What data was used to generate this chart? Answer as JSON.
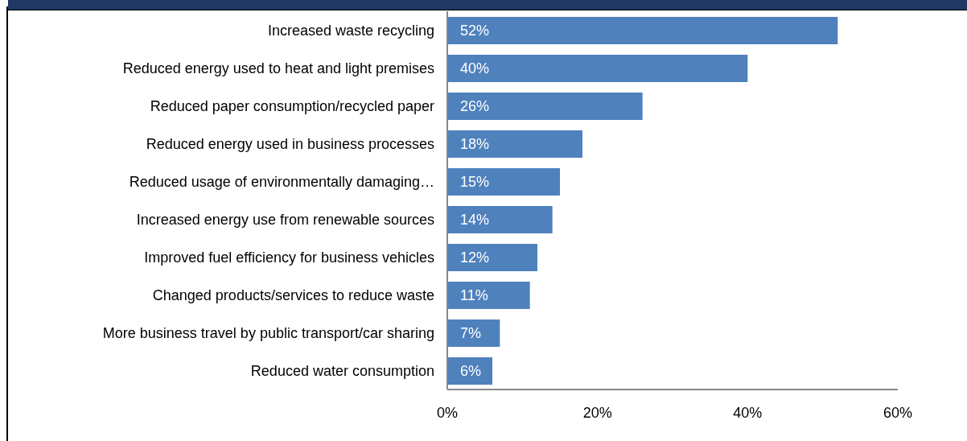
{
  "chart_data": {
    "type": "bar",
    "orientation": "horizontal",
    "categories": [
      "Increased waste recycling",
      "Reduced energy used to heat and light premises",
      "Reduced paper consumption/recycled paper",
      "Reduced energy used in business processes",
      "Reduced usage of environmentally damaging…",
      "Increased energy use from renewable sources",
      "Improved fuel efficiency for business vehicles",
      "Changed products/services to reduce waste",
      "More business travel by public transport/car sharing",
      "Reduced water consumption"
    ],
    "values": [
      52,
      40,
      26,
      18,
      15,
      14,
      12,
      11,
      7,
      6
    ],
    "value_labels": [
      "52%",
      "40%",
      "26%",
      "18%",
      "15%",
      "14%",
      "12%",
      "11%",
      "7%",
      "6%"
    ],
    "color": "#4f81bd",
    "xlim": [
      0,
      60
    ],
    "xticks": [
      {
        "value": 0,
        "label": "0%"
      },
      {
        "value": 20,
        "label": "20%"
      },
      {
        "value": 40,
        "label": "40%"
      },
      {
        "value": 60,
        "label": "60%"
      }
    ],
    "grid": false,
    "legend": false
  }
}
